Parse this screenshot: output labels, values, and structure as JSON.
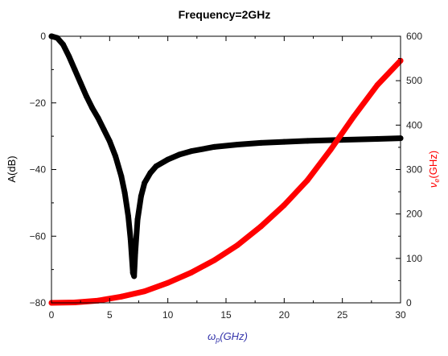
{
  "colors": {
    "left_series": "#000000",
    "right_series": "#ff0000",
    "xlabel": "#3333aa",
    "ylabel_right": "#ff0000",
    "ylabel_left": "#000000",
    "axis": "#000000"
  },
  "chart_data": {
    "type": "line",
    "title": "Frequency=2GHz",
    "xlabel": "ω_p(GHz)",
    "xlabel_parts": {
      "symbol": "ω",
      "sub": "p",
      "unit": "(GHz)"
    },
    "ylabel_left": "A(dB)",
    "ylabel_right": "ν_e(GHz)",
    "ylabel_right_parts": {
      "symbol": "ν",
      "sub": "e",
      "unit": "(GHz)"
    },
    "xlim": [
      0,
      30
    ],
    "ylim_left": [
      -80,
      0
    ],
    "ylim_right": [
      0,
      600
    ],
    "xticks": [
      "0",
      "5",
      "10",
      "15",
      "20",
      "25",
      "30"
    ],
    "yticks_left": [
      "0",
      "−20",
      "−40",
      "−60",
      "−80"
    ],
    "yticks_right": [
      "0",
      "100",
      "200",
      "300",
      "400",
      "500",
      "600"
    ],
    "grid": false,
    "legend": "none",
    "series": [
      {
        "axis": "left",
        "x": [
          0,
          0.5,
          1,
          1.5,
          2,
          2.5,
          3,
          3.5,
          4,
          4.5,
          5,
          5.5,
          6,
          6.3,
          6.6,
          6.8,
          7.0,
          7.1,
          7.2,
          7.4,
          7.7,
          8.0,
          8.5,
          9,
          10,
          11,
          12,
          14,
          16,
          18,
          20,
          22,
          25,
          28,
          30
        ],
        "y": [
          0,
          -0.5,
          -2.5,
          -6,
          -10,
          -14,
          -18,
          -21.5,
          -24.5,
          -28,
          -31.5,
          -36,
          -42,
          -47,
          -54,
          -61,
          -71,
          -72,
          -65,
          -55,
          -48,
          -44,
          -41,
          -39,
          -37,
          -35.5,
          -34.5,
          -33.2,
          -32.5,
          -32,
          -31.7,
          -31.4,
          -31.1,
          -30.8,
          -30.6
        ]
      },
      {
        "axis": "right",
        "x": [
          0,
          2,
          4,
          6,
          8,
          10,
          12,
          14,
          16,
          18,
          20,
          22,
          24,
          26,
          28,
          30
        ],
        "y": [
          0,
          1,
          5,
          14,
          26,
          45,
          68,
          96,
          130,
          172,
          220,
          276,
          345,
          420,
          490,
          545
        ]
      }
    ]
  }
}
